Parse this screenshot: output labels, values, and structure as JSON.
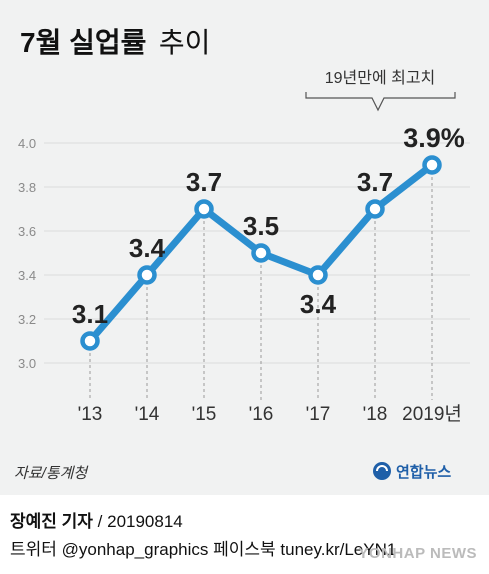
{
  "title": {
    "main": "7월 실업률",
    "sub": "추이"
  },
  "callout": "19년만에 최고치",
  "source": "자료/통계청",
  "logo": {
    "text": "연합뉴스"
  },
  "credits": {
    "reporter": "장예진 기자",
    "date": "/ 20190814",
    "social": "트위터 @yonhap_graphics  페이스북 tuney.kr/LeYN1"
  },
  "watermark": "YONHAP NEWS",
  "colors": {
    "line": "#2b8fd0",
    "marker_fill": "#ffffff",
    "background": "#f1f2f2"
  },
  "chart_data": {
    "type": "line",
    "title": "7월 실업률 추이",
    "categories": [
      "'13",
      "'14",
      "'15",
      "'16",
      "'17",
      "'18",
      "2019년"
    ],
    "values": [
      3.1,
      3.4,
      3.7,
      3.5,
      3.4,
      3.7,
      3.9
    ],
    "data_labels": [
      "3.1",
      "3.4",
      "3.7",
      "3.5",
      "3.4",
      "3.7",
      "3.9%"
    ],
    "yticks": [
      "3.0",
      "3.2",
      "3.4",
      "3.6",
      "3.8",
      "4.0"
    ],
    "ylim": [
      3.0,
      4.0
    ],
    "xlabel": "",
    "ylabel": "",
    "grid": true,
    "legend": "none"
  }
}
